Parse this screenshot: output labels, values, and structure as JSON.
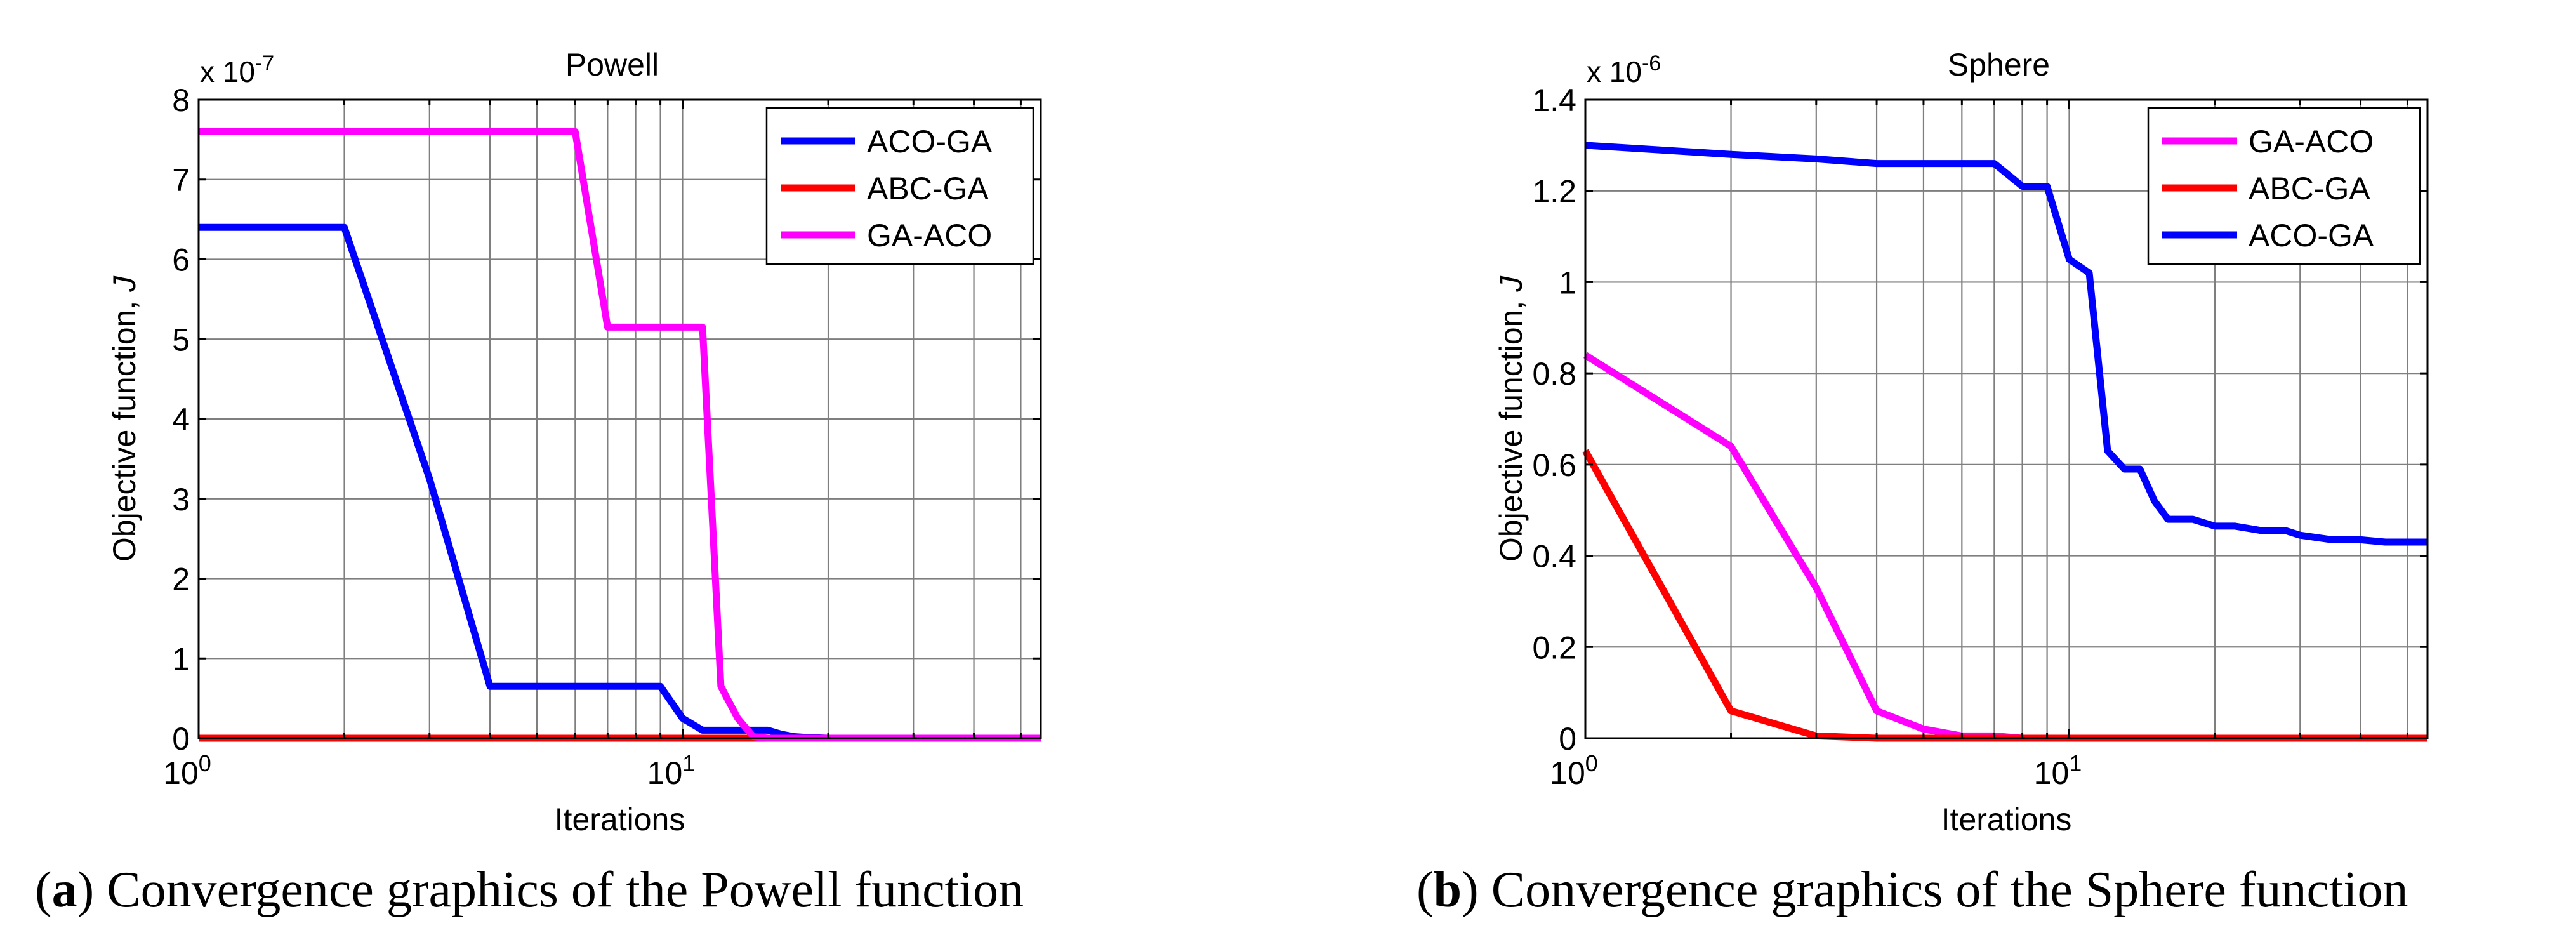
{
  "figure": {
    "colors": {
      "ACO-GA": "#0000ff",
      "ABC-GA": "#ff0000",
      "GA-ACO": "#ff00ff",
      "grid": "#7f7f7f",
      "axis": "#000000"
    }
  },
  "chart_data": [
    {
      "id": "powell",
      "type": "line",
      "title": "Powell",
      "xlabel": "Iterations",
      "ylabel_main": "Objective function, ",
      "ylabel_italic": "J",
      "exponent_label": "x 10",
      "exponent_power": "-7",
      "x_scale": "log",
      "xlim": [
        1,
        55
      ],
      "ylim": [
        0,
        8
      ],
      "x_ticks": [
        {
          "value": 1,
          "base": "10",
          "exp": "0"
        },
        {
          "value": 10,
          "base": "10",
          "exp": "1"
        }
      ],
      "y_ticks": [
        {
          "value": 0,
          "label": "0"
        },
        {
          "value": 1,
          "label": "1"
        },
        {
          "value": 2,
          "label": "2"
        },
        {
          "value": 3,
          "label": "3"
        },
        {
          "value": 4,
          "label": "4"
        },
        {
          "value": 5,
          "label": "5"
        },
        {
          "value": 6,
          "label": "6"
        },
        {
          "value": 7,
          "label": "7"
        },
        {
          "value": 8,
          "label": "8"
        }
      ],
      "grid": true,
      "legend_position": "top-right",
      "series": [
        {
          "name": "ACO-GA",
          "x": [
            1,
            2,
            3,
            4,
            5,
            6,
            7,
            8,
            9,
            10,
            11,
            12,
            13,
            14,
            15,
            16,
            17,
            18,
            20,
            25,
            30,
            40,
            55
          ],
          "y": [
            6.4,
            6.4,
            3.25,
            0.65,
            0.65,
            0.65,
            0.65,
            0.65,
            0.65,
            0.25,
            0.1,
            0.1,
            0.1,
            0.1,
            0.1,
            0.05,
            0.02,
            0.01,
            0.0,
            0.0,
            0.0,
            0.0,
            0.0
          ]
        },
        {
          "name": "ABC-GA",
          "x": [
            1,
            2,
            3,
            5,
            10,
            20,
            55
          ],
          "y": [
            0.0,
            0.0,
            0.0,
            0.0,
            0.0,
            0.0,
            0.0
          ]
        },
        {
          "name": "GA-ACO",
          "x": [
            1,
            2,
            3,
            4,
            5,
            6,
            7,
            8,
            9,
            10,
            11,
            12,
            13,
            14,
            15,
            16,
            18,
            20,
            25,
            30,
            40,
            55
          ],
          "y": [
            7.6,
            7.6,
            7.6,
            7.6,
            7.6,
            7.6,
            5.15,
            5.15,
            5.15,
            5.15,
            5.15,
            0.65,
            0.25,
            0.02,
            0.0,
            0.0,
            0.0,
            0.0,
            0.0,
            0.0,
            0.0,
            0.0
          ]
        }
      ],
      "caption_label": "(",
      "caption_letter": "a",
      "caption_text": ") Convergence graphics of the Powell function"
    },
    {
      "id": "sphere",
      "type": "line",
      "title": "Sphere",
      "xlabel": "Iterations",
      "ylabel_main": "Objective function, ",
      "ylabel_italic": "J",
      "exponent_label": "x 10",
      "exponent_power": "-6",
      "x_scale": "log",
      "xlim": [
        1,
        55
      ],
      "ylim": [
        0,
        1.4
      ],
      "x_ticks": [
        {
          "value": 1,
          "base": "10",
          "exp": "0"
        },
        {
          "value": 10,
          "base": "10",
          "exp": "1"
        }
      ],
      "y_ticks": [
        {
          "value": 0,
          "label": "0"
        },
        {
          "value": 0.2,
          "label": "0.2"
        },
        {
          "value": 0.4,
          "label": "0.4"
        },
        {
          "value": 0.6,
          "label": "0.6"
        },
        {
          "value": 0.8,
          "label": "0.8"
        },
        {
          "value": 1.0,
          "label": "1"
        },
        {
          "value": 1.2,
          "label": "1.2"
        },
        {
          "value": 1.4,
          "label": "1.4"
        }
      ],
      "grid": true,
      "legend_position": "top-right",
      "series": [
        {
          "name": "GA-ACO",
          "x": [
            1,
            2,
            3,
            4,
            5,
            6,
            7,
            8,
            10,
            15,
            20,
            30,
            55
          ],
          "y": [
            0.84,
            0.64,
            0.33,
            0.06,
            0.02,
            0.005,
            0.005,
            0.0,
            0.0,
            0.0,
            0.0,
            0.0,
            0.0
          ]
        },
        {
          "name": "ABC-GA",
          "x": [
            1,
            2,
            3,
            4,
            5,
            10,
            20,
            55
          ],
          "y": [
            0.63,
            0.06,
            0.005,
            0.0,
            0.0,
            0.0,
            0.0,
            0.0
          ]
        },
        {
          "name": "ACO-GA",
          "x": [
            1,
            2,
            3,
            4,
            5,
            6,
            7,
            8,
            9,
            10,
            11,
            12,
            13,
            14,
            15,
            16,
            18,
            20,
            22,
            25,
            28,
            30,
            35,
            40,
            45,
            55
          ],
          "y": [
            1.3,
            1.28,
            1.27,
            1.26,
            1.26,
            1.26,
            1.26,
            1.21,
            1.21,
            1.05,
            1.02,
            0.63,
            0.59,
            0.59,
            0.52,
            0.48,
            0.48,
            0.465,
            0.465,
            0.455,
            0.455,
            0.445,
            0.435,
            0.435,
            0.43,
            0.43
          ]
        }
      ],
      "caption_label": "(",
      "caption_letter": "b",
      "caption_text": ") Convergence graphics of the Sphere function"
    }
  ]
}
